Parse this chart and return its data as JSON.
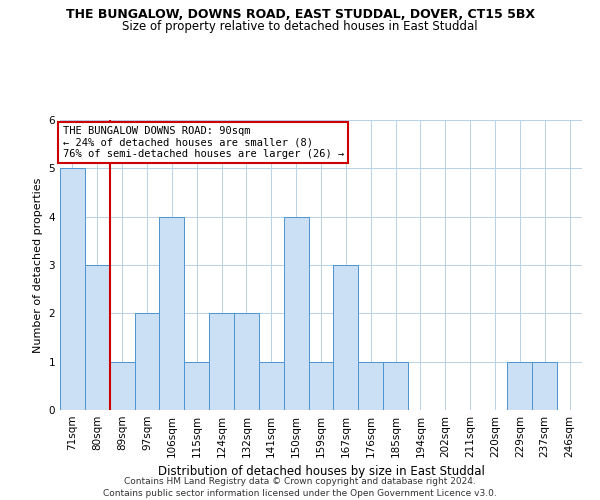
{
  "title_line1": "THE BUNGALOW, DOWNS ROAD, EAST STUDDAL, DOVER, CT15 5BX",
  "title_line2": "Size of property relative to detached houses in East Studdal",
  "xlabel": "Distribution of detached houses by size in East Studdal",
  "ylabel": "Number of detached properties",
  "categories": [
    "71sqm",
    "80sqm",
    "89sqm",
    "97sqm",
    "106sqm",
    "115sqm",
    "124sqm",
    "132sqm",
    "141sqm",
    "150sqm",
    "159sqm",
    "167sqm",
    "176sqm",
    "185sqm",
    "194sqm",
    "202sqm",
    "211sqm",
    "220sqm",
    "229sqm",
    "237sqm",
    "246sqm"
  ],
  "values": [
    5,
    3,
    1,
    2,
    4,
    1,
    2,
    2,
    1,
    4,
    1,
    3,
    1,
    1,
    0,
    0,
    0,
    0,
    1,
    1,
    0
  ],
  "red_line_index": 2,
  "bar_color": "#cce0f5",
  "bar_edge_color": "#4d94d0",
  "red_line_color": "#cc0000",
  "ylim": [
    0,
    6
  ],
  "yticks": [
    0,
    1,
    2,
    3,
    4,
    5,
    6
  ],
  "annotation_text": "THE BUNGALOW DOWNS ROAD: 90sqm\n← 24% of detached houses are smaller (8)\n76% of semi-detached houses are larger (26) →",
  "annotation_box_facecolor": "#ffffff",
  "annotation_box_edgecolor": "#cc0000",
  "grid_color": "#b8d0e8",
  "footer_line1": "Contains HM Land Registry data © Crown copyright and database right 2024.",
  "footer_line2": "Contains public sector information licensed under the Open Government Licence v3.0.",
  "title1_fontsize": 9,
  "title2_fontsize": 8.5,
  "ylabel_fontsize": 8,
  "xlabel_fontsize": 8.5,
  "tick_fontsize": 7.5,
  "annot_fontsize": 7.5,
  "footer_fontsize": 6.5
}
